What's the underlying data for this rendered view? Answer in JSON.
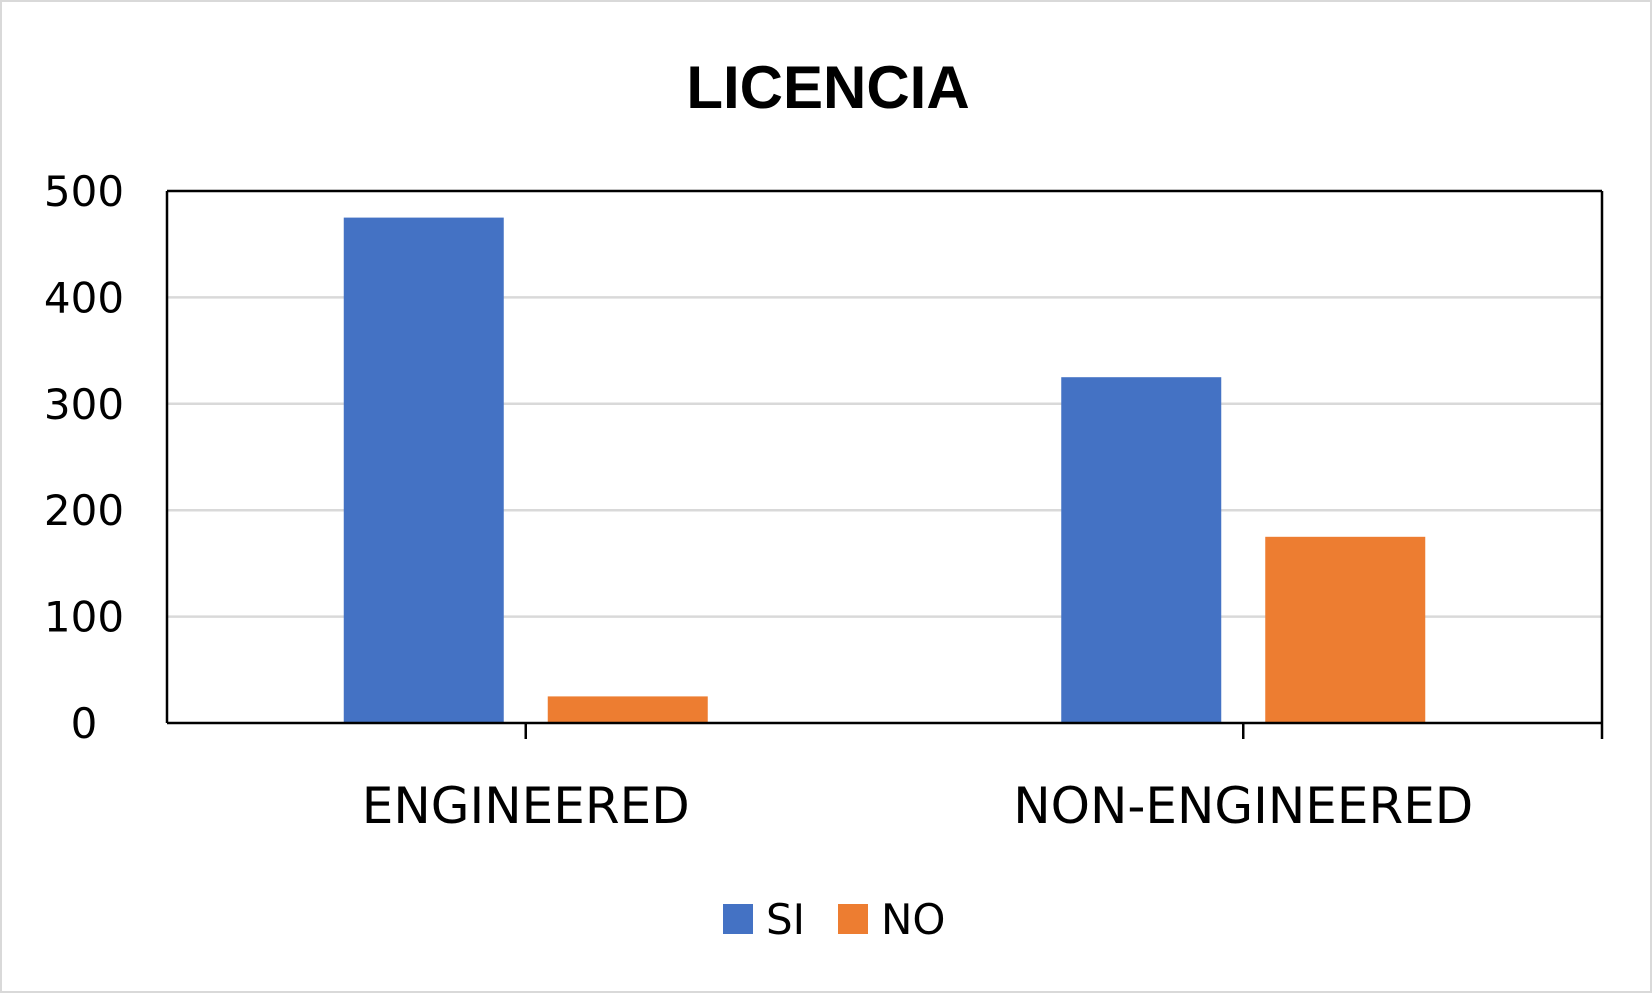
{
  "chart_data": {
    "type": "bar",
    "title": "LICENCIA",
    "xlabel": "",
    "ylabel": "",
    "categories": [
      "ENGINEERED",
      "NON-ENGINEERED"
    ],
    "series": [
      {
        "name": "SI",
        "values": [
          475,
          325
        ],
        "color": "#4472C4"
      },
      {
        "name": "NO",
        "values": [
          25,
          175
        ],
        "color": "#ED7D31"
      }
    ],
    "ylim": [
      0,
      500
    ],
    "yticks": [
      0,
      100,
      200,
      300,
      400,
      500
    ],
    "grid": true,
    "legend": "bottom-center"
  }
}
